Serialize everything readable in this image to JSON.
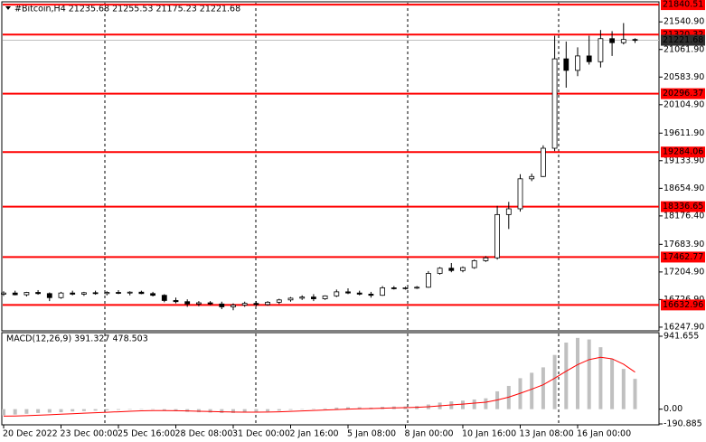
{
  "chart_data": [
    {
      "type": "candlestick",
      "title": "#Bitcoin,H4  21235.68 21255.53 21175.23 21221.68",
      "categories": [
        "20 Dec 2022",
        null,
        null,
        null,
        null,
        "23 Dec 00:00",
        null,
        null,
        null,
        null,
        "25 Dec 16:00",
        null,
        null,
        null,
        null,
        "28 Dec 08:00",
        null,
        null,
        null,
        null,
        "31 Dec 00:00",
        null,
        null,
        null,
        null,
        "2 Jan 16:00",
        null,
        null,
        null,
        null,
        "5 Jan 08:00",
        null,
        null,
        null,
        null,
        "8 Jan 00:00",
        null,
        null,
        null,
        null,
        "10 Jan 16:00",
        null,
        null,
        null,
        null,
        "13 Jan 08:00",
        null,
        null,
        null,
        null,
        "16 Jan 00:00",
        null,
        null,
        null,
        null,
        null
      ],
      "open": [
        16820,
        16840,
        16810,
        16850,
        16830,
        16760,
        16840,
        16820,
        16845,
        16830,
        16850,
        16840,
        16855,
        16830,
        16800,
        16710,
        16690,
        16650,
        16670,
        16650,
        16600,
        16630,
        16660,
        16640,
        16680,
        16720,
        16750,
        16770,
        16740,
        16790,
        16860,
        16840,
        16820,
        16800,
        16930,
        16920,
        16930,
        16940,
        17180,
        17270,
        17230,
        17280,
        17400,
        17450,
        18200,
        18300,
        18820,
        18860,
        19350,
        20900,
        20700,
        20950,
        20850,
        21250,
        21180,
        21235.68
      ],
      "high": [
        16870,
        16880,
        16860,
        16890,
        16850,
        16860,
        16880,
        16860,
        16880,
        16870,
        16890,
        16870,
        16880,
        16860,
        16820,
        16760,
        16730,
        16700,
        16700,
        16690,
        16660,
        16690,
        16700,
        16700,
        16740,
        16770,
        16800,
        16820,
        16800,
        16900,
        16920,
        16880,
        16860,
        16960,
        16960,
        16950,
        16960,
        17220,
        17290,
        17360,
        17300,
        17420,
        17480,
        18350,
        18420,
        18900,
        18910,
        19400,
        21300,
        21200,
        21100,
        21300,
        21400,
        21380,
        21520,
        21255.53
      ],
      "low": [
        16790,
        16800,
        16780,
        16810,
        16700,
        16740,
        16800,
        16790,
        16810,
        16800,
        16820,
        16800,
        16820,
        16780,
        16680,
        16660,
        16600,
        16610,
        16630,
        16560,
        16540,
        16600,
        16610,
        16620,
        16650,
        16690,
        16720,
        16700,
        16720,
        16770,
        16820,
        16800,
        16760,
        16790,
        16900,
        16900,
        16910,
        16930,
        17160,
        17200,
        17200,
        17260,
        17380,
        17420,
        17950,
        18250,
        18780,
        18850,
        19300,
        20400,
        20600,
        20800,
        20750,
        20950,
        21150,
        21175.23
      ],
      "close": [
        16840,
        16810,
        16850,
        16830,
        16760,
        16840,
        16820,
        16845,
        16830,
        16850,
        16840,
        16855,
        16830,
        16800,
        16710,
        16690,
        16650,
        16670,
        16650,
        16600,
        16630,
        16660,
        16640,
        16680,
        16720,
        16750,
        16770,
        16740,
        16790,
        16860,
        16840,
        16820,
        16800,
        16930,
        16920,
        16930,
        16940,
        17180,
        17270,
        17230,
        17280,
        17400,
        17450,
        18200,
        18300,
        18820,
        18860,
        19350,
        20900,
        20700,
        20950,
        20850,
        21250,
        21180,
        21235.68,
        21221.68
      ],
      "ylim": [
        16200,
        21920
      ],
      "yticks": [
        {
          "value": 21540.9,
          "label": "21540.90"
        },
        {
          "value": 21061.9,
          "label": "21061.90"
        },
        {
          "value": 20583.9,
          "label": "20583.90"
        },
        {
          "value": 20104.9,
          "label": "20104.90"
        },
        {
          "value": 19611.9,
          "label": "19611.90"
        },
        {
          "value": 19133.9,
          "label": "19133.90"
        },
        {
          "value": 18654.9,
          "label": "18654.90"
        },
        {
          "value": 18176.4,
          "label": "18176.40"
        },
        {
          "value": 17683.9,
          "label": "17683.90"
        },
        {
          "value": 17204.9,
          "label": "17204.90"
        },
        {
          "value": 16726.9,
          "label": "16726.90"
        },
        {
          "value": 16247.9,
          "label": "16247.90"
        }
      ],
      "levels": [
        21840.51,
        21320.32,
        20296.37,
        19284.06,
        18336.65,
        17462.77,
        16632.96
      ],
      "level_color": "#ff0000",
      "up_color": "#ffffff",
      "down_color": "#000000"
    },
    {
      "type": "macd",
      "title": "MACD(12,26,9) 391.327 478.503",
      "series": [
        {
          "color": "#c0c0c0",
          "values": [
            -80,
            -70,
            -60,
            -50,
            -45,
            -40,
            -30,
            -25,
            -20,
            -15,
            -10,
            -5,
            0,
            -5,
            -15,
            -25,
            -35,
            -40,
            -45,
            -50,
            -50,
            -45,
            -40,
            -30,
            -20,
            -10,
            0,
            5,
            10,
            20,
            25,
            25,
            20,
            30,
            35,
            35,
            40,
            60,
            85,
            100,
            110,
            125,
            140,
            230,
            300,
            400,
            470,
            540,
            700,
            860,
            920,
            900,
            800,
            650,
            520,
            391.327
          ]
        },
        {
          "color": "#ff0000",
          "values": [
            -90,
            -88,
            -84,
            -78,
            -72,
            -66,
            -59,
            -52,
            -46,
            -40,
            -34,
            -28,
            -22,
            -19,
            -18,
            -20,
            -23,
            -27,
            -30,
            -34,
            -37,
            -39,
            -39,
            -37,
            -34,
            -29,
            -23,
            -17,
            -12,
            -6,
            0,
            5,
            8,
            12,
            17,
            20,
            24,
            31,
            42,
            54,
            65,
            77,
            90,
            118,
            155,
            205,
            258,
            315,
            400,
            490,
            575,
            640,
            670,
            650,
            580,
            478.503
          ]
        }
      ],
      "ylim": [
        -190.885,
        941.655
      ],
      "yticks": [
        941.655,
        {
          "value": 0,
          "label": "0.00"
        },
        -190.885
      ]
    }
  ]
}
